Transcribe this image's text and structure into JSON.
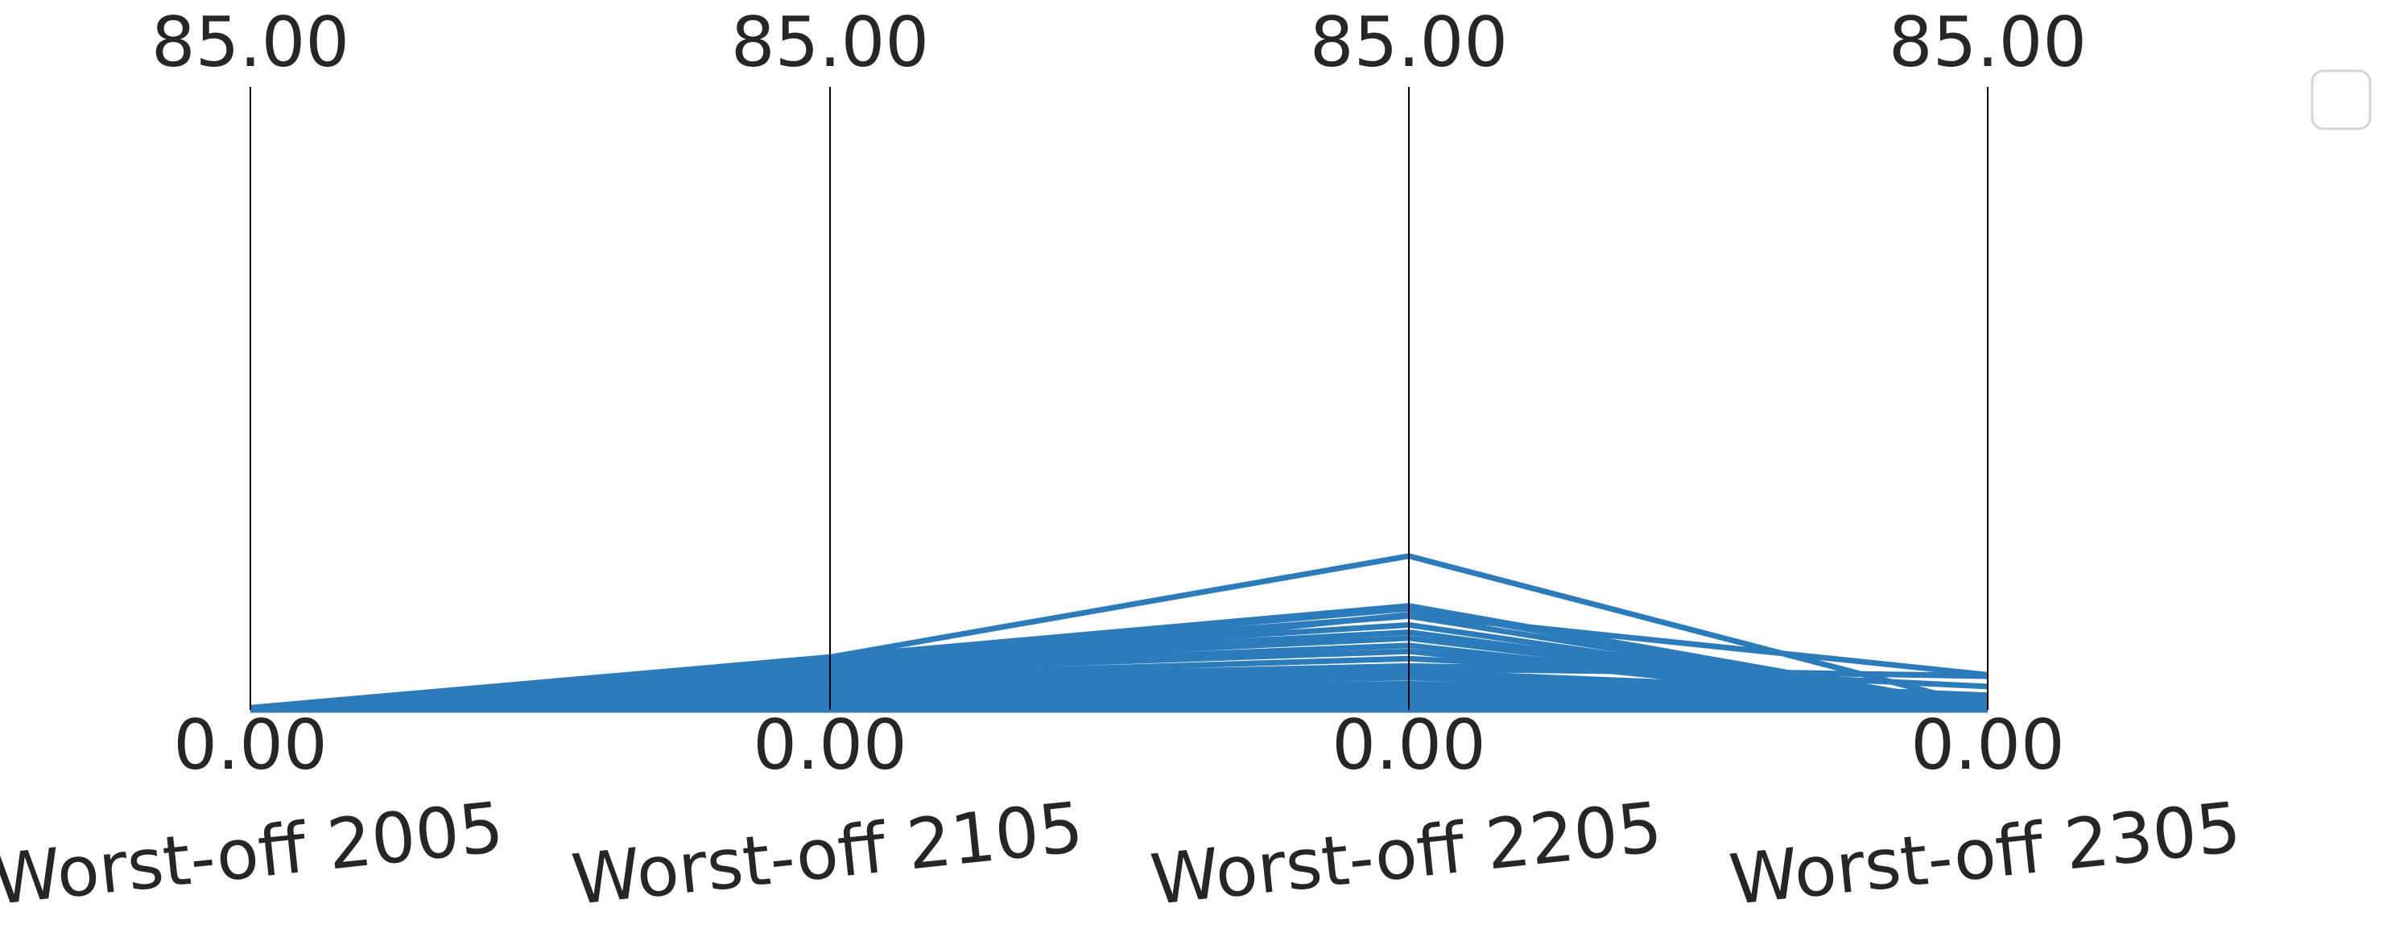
{
  "chart_data": {
    "type": "line",
    "subtype": "parallel-coordinates",
    "title": "",
    "axes": [
      {
        "label": "Worst-off 2005",
        "min": 0.0,
        "max": 85.0,
        "min_label": "0.00",
        "max_label": "85.00"
      },
      {
        "label": "Worst-off 2105",
        "min": 0.0,
        "max": 85.0,
        "min_label": "0.00",
        "max_label": "85.00"
      },
      {
        "label": "Worst-off 2205",
        "min": 0.0,
        "max": 85.0,
        "min_label": "0.00",
        "max_label": "85.00"
      },
      {
        "label": "Worst-off 2305",
        "min": 0.0,
        "max": 85.0,
        "min_label": "0.00",
        "max_label": "85.00"
      }
    ],
    "series_color": "#2c7bba",
    "legend": {
      "placement": "top-right",
      "entries": []
    },
    "grid": false,
    "lines": [
      [
        0.3,
        7.2,
        21.0,
        0.4
      ],
      [
        0.3,
        7.2,
        14.2,
        0.3
      ],
      [
        0.2,
        7.0,
        13.8,
        0.3
      ],
      [
        0.2,
        6.8,
        12.8,
        0.2
      ],
      [
        0.2,
        6.6,
        11.6,
        0.2
      ],
      [
        0.2,
        6.4,
        10.6,
        0.2
      ],
      [
        0.2,
        6.0,
        9.8,
        0.2
      ],
      [
        0.2,
        5.6,
        8.8,
        0.2
      ],
      [
        0.2,
        5.2,
        8.0,
        0.2
      ],
      [
        0.1,
        5.0,
        13.0,
        4.8
      ],
      [
        0.1,
        4.6,
        7.0,
        3.2
      ],
      [
        0.1,
        4.2,
        6.0,
        4.6
      ],
      [
        0.1,
        4.0,
        5.6,
        4.7
      ],
      [
        0.1,
        3.6,
        5.2,
        2.0
      ],
      [
        0.1,
        3.2,
        5.0,
        1.4
      ],
      [
        0.1,
        2.8,
        4.4,
        1.0
      ],
      [
        0.1,
        2.4,
        3.6,
        0.8
      ],
      [
        0.1,
        2.0,
        3.0,
        0.6
      ],
      [
        0.1,
        1.6,
        2.4,
        0.5
      ],
      [
        0.1,
        1.2,
        1.8,
        0.4
      ],
      [
        0.0,
        0.9,
        1.2,
        0.3
      ],
      [
        0.0,
        0.6,
        0.8,
        0.2
      ],
      [
        0.0,
        0.4,
        0.5,
        0.1
      ],
      [
        0.0,
        0.2,
        0.3,
        0.1
      ],
      [
        0.0,
        0.1,
        0.1,
        0.0
      ],
      [
        0.0,
        0.0,
        0.0,
        0.0
      ],
      [
        0.2,
        1.0,
        0.2,
        0.2
      ],
      [
        0.1,
        0.3,
        0.0,
        0.0
      ]
    ]
  }
}
